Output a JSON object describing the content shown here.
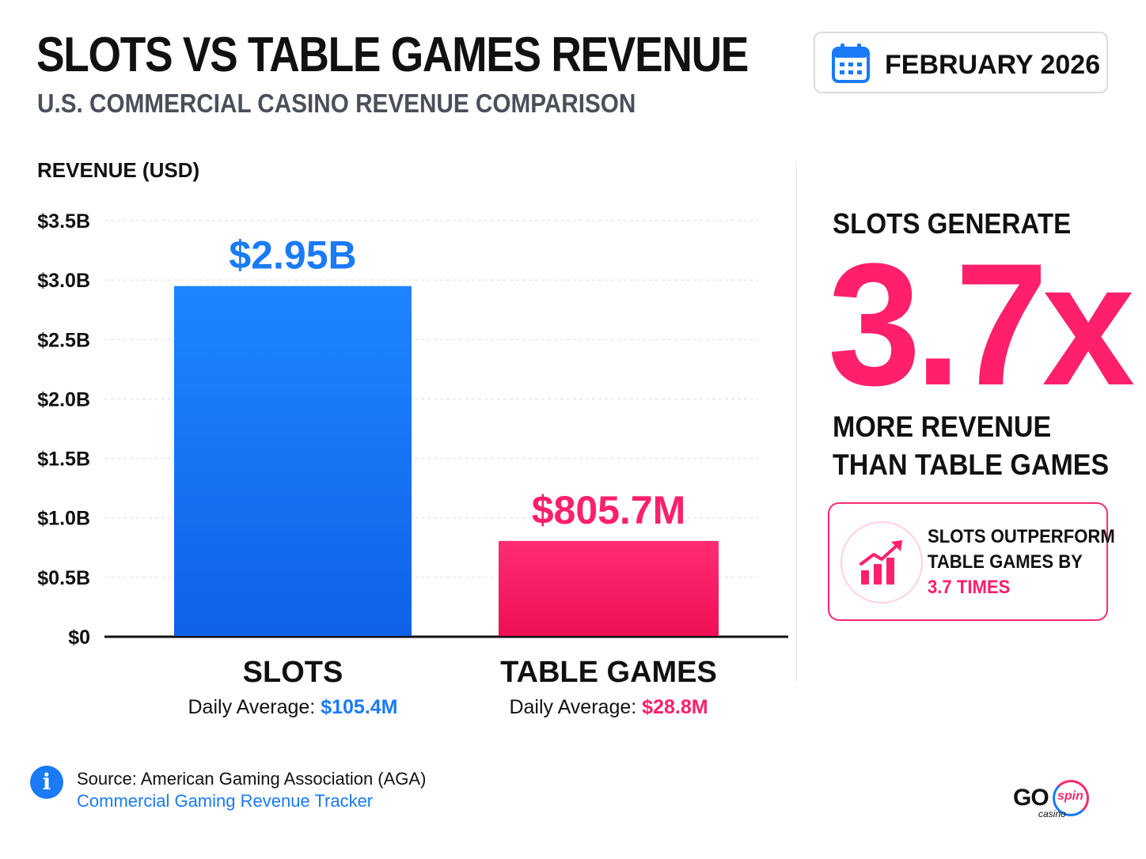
{
  "title": "SLOTS VS TABLE GAMES REVENUE",
  "subtitle": "U.S. COMMERCIAL CASINO REVENUE COMPARISON",
  "date_badge": {
    "icon": "calendar-icon",
    "text": "FEBRUARY 2026"
  },
  "chart_data": {
    "type": "bar",
    "ylabel": "REVENUE (USD)",
    "xlabel": "",
    "categories": [
      "SLOTS",
      "TABLE GAMES"
    ],
    "values": [
      2.95,
      0.8057
    ],
    "value_labels": [
      "$2.95B",
      "$805.7M"
    ],
    "ylim": [
      0,
      3.5
    ],
    "yticks": [
      0,
      0.5,
      1.0,
      1.5,
      2.0,
      2.5,
      3.0,
      3.5
    ],
    "ytick_labels": [
      "$0",
      "$0.5B",
      "$1.0B",
      "$1.5B",
      "$2.0B",
      "$2.5B",
      "$3.0B",
      "$3.5B"
    ],
    "grid": true,
    "colors": [
      "#1a7af8",
      "#ff1f6b"
    ]
  },
  "daily_averages": [
    {
      "label": "Daily Average:",
      "value": "$105.4M",
      "color": "#1a7af8"
    },
    {
      "label": "Daily Average:",
      "value": "$28.8M",
      "color": "#ff1f6b"
    }
  ],
  "highlight": {
    "heading": "SLOTS GENERATE",
    "ratio": "3.7x",
    "line1": "MORE REVENUE",
    "line2": "THAN TABLE GAMES",
    "color": "#ff1f6b"
  },
  "callout": {
    "icon": "growth-chart-icon",
    "line1": "SLOTS OUTPERFORM",
    "line2": "TABLE GAMES BY",
    "line3": "3.7 TIMES"
  },
  "source": {
    "icon": "info-icon",
    "line1": "Source: American Gaming Association (AGA)",
    "line2": "Commercial Gaming Revenue Tracker"
  },
  "logo": {
    "go": "GO",
    "spin": "spin",
    "casino": "casino"
  }
}
